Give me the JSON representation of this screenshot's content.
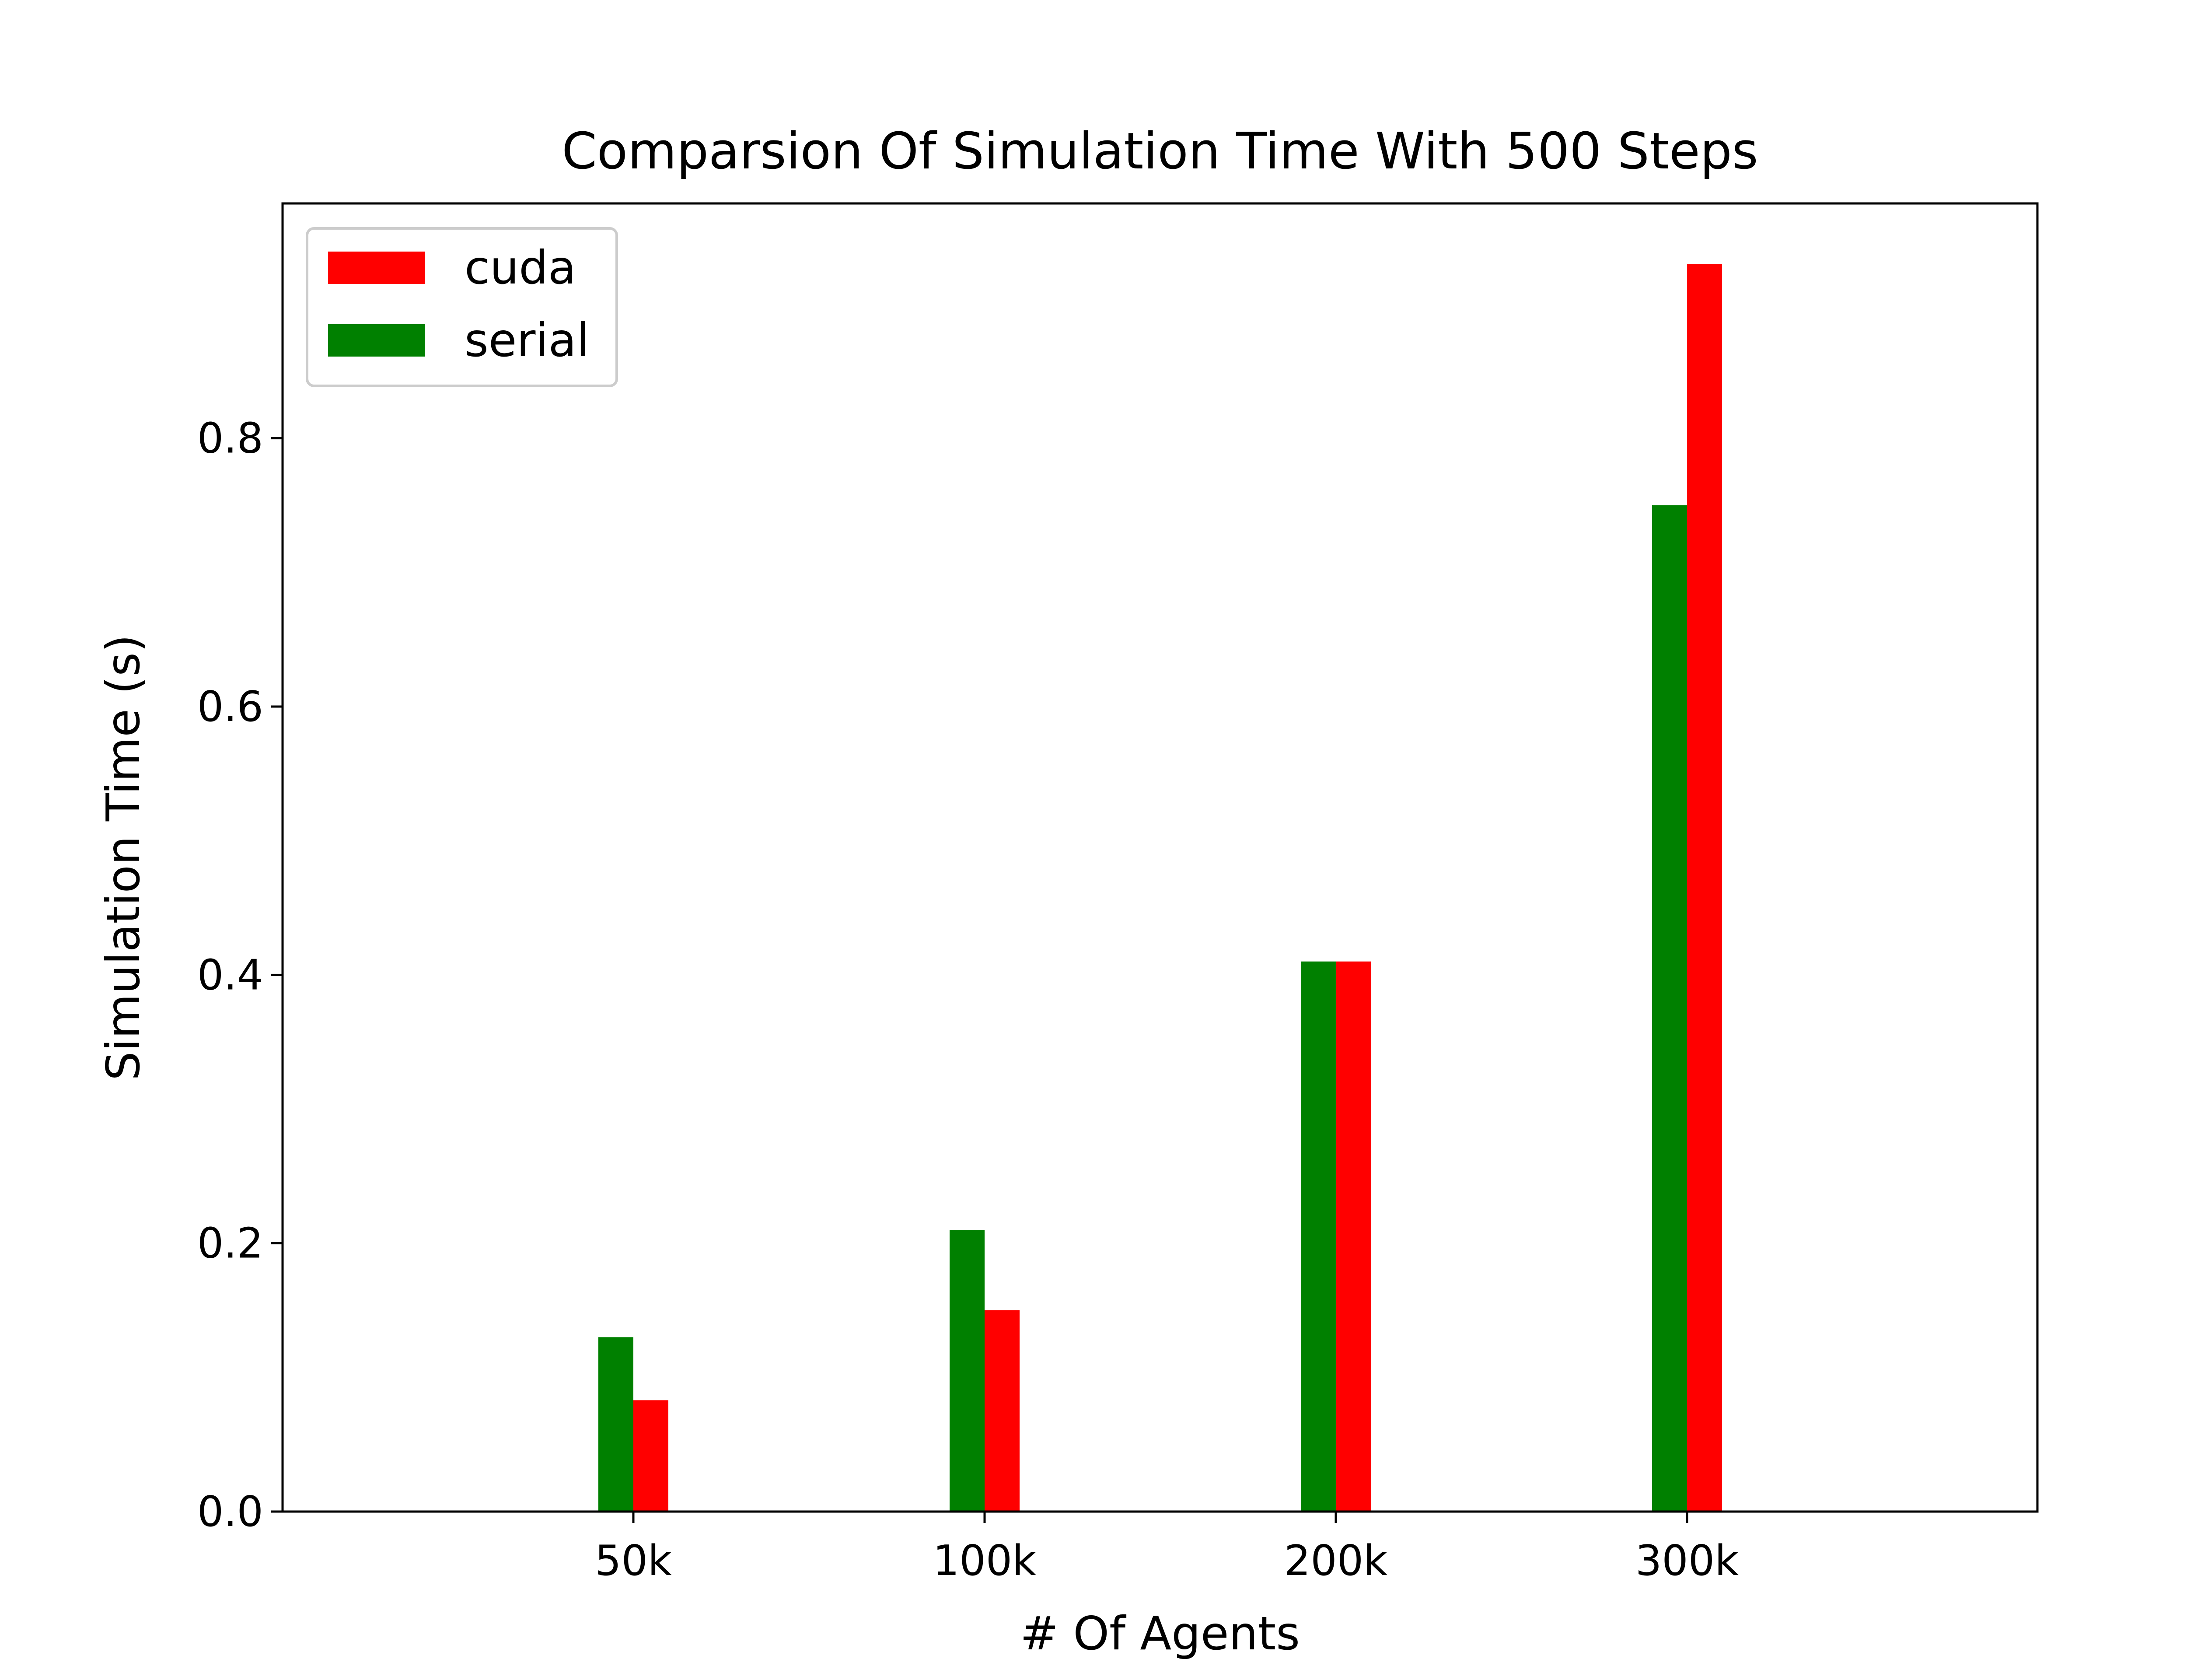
{
  "chart_data": {
    "type": "bar",
    "title": "Comparsion Of Simulation Time With 500 Steps",
    "xlabel": "# Of Agents",
    "ylabel": "Simulation Time (s)",
    "categories": [
      "50k",
      "100k",
      "200k",
      "300k"
    ],
    "series": [
      {
        "name": "serial",
        "color": "#008000",
        "values": [
          0.13,
          0.21,
          0.41,
          0.75
        ]
      },
      {
        "name": "cuda",
        "color": "#ff0000",
        "values": [
          0.083,
          0.15,
          0.41,
          0.93
        ]
      }
    ],
    "legend_order": [
      "cuda",
      "serial"
    ],
    "legend_position": "upper-left",
    "ylim": [
      0,
      0.975
    ],
    "yticks": [
      "0.0",
      "0.2",
      "0.4",
      "0.6",
      "0.8"
    ],
    "grid": false
  }
}
